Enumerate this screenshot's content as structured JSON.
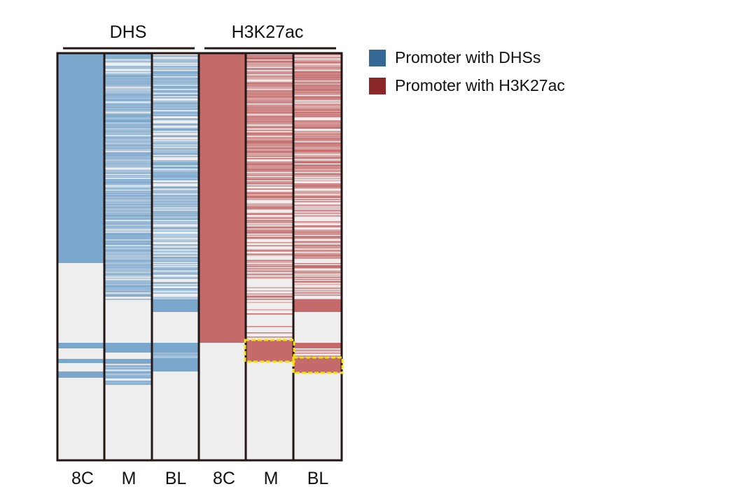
{
  "groups": [
    {
      "label": "DHS",
      "columns": [
        0,
        1,
        2
      ]
    },
    {
      "label": "H3K27ac",
      "columns": [
        3,
        4,
        5
      ]
    }
  ],
  "columns": [
    {
      "label": "8C",
      "track": "DHS"
    },
    {
      "label": "M",
      "track": "DHS"
    },
    {
      "label": "BL",
      "track": "DHS"
    },
    {
      "label": "8C",
      "track": "H3K27ac"
    },
    {
      "label": "M",
      "track": "H3K27ac"
    },
    {
      "label": "BL",
      "track": "H3K27ac"
    }
  ],
  "legend": [
    {
      "label": "Promoter with DHSs",
      "color": "#356896"
    },
    {
      "label": "Promoter with H3K27ac",
      "color": "#8b2626"
    }
  ],
  "colors": {
    "dhs_fill": "#7ba7cd",
    "h3k27ac_fill": "#c46a6a",
    "background": "#eeeeee",
    "border": "#231815",
    "highlight": "#f4e20f"
  }
}
